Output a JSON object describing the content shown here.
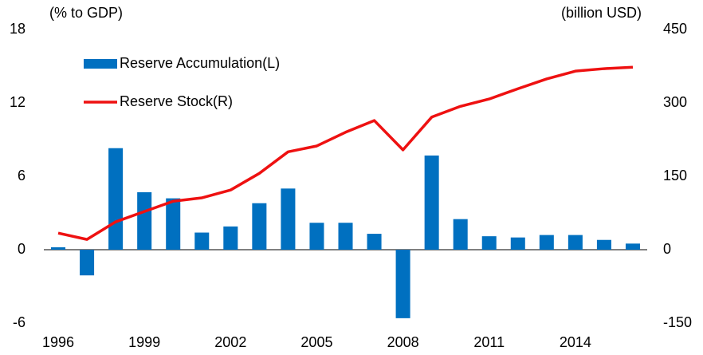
{
  "chart_data": {
    "type": "bar_line",
    "y_label": "(% to GDP)",
    "y2_label": "(billion USD)",
    "categories": [
      "1996",
      null,
      null,
      "1999",
      null,
      null,
      "2002",
      null,
      null,
      "2005",
      null,
      null,
      "2008",
      null,
      null,
      "2011",
      null,
      null,
      "2014",
      null,
      null
    ],
    "series": [
      {
        "name": "Reserve Accumulation(L)",
        "type": "bar",
        "color": "#0070c0",
        "axis": "y",
        "values": [
          0.2,
          -2.1,
          8.3,
          4.7,
          4.2,
          1.4,
          1.9,
          3.8,
          5.0,
          2.2,
          2.2,
          1.3,
          -5.6,
          7.7,
          2.5,
          1.1,
          1.0,
          1.2,
          1.2,
          0.8,
          0.5
        ]
      },
      {
        "name": "Reserve Stock(R)",
        "type": "line",
        "color": "#ee1111",
        "axis": "y2",
        "values": [
          34,
          21,
          57,
          78,
          99,
          106,
          122,
          156,
          200,
          212,
          240,
          264,
          204,
          271,
          293,
          308,
          329,
          349,
          365,
          370,
          373
        ]
      }
    ],
    "ylim": [
      -6,
      18
    ],
    "yticks": [
      -6,
      0,
      6,
      12,
      18
    ],
    "y2lim": [
      -150,
      450
    ],
    "y2ticks": [
      -150,
      0,
      150,
      300,
      450
    ],
    "grid": false,
    "legend": "top-left"
  }
}
